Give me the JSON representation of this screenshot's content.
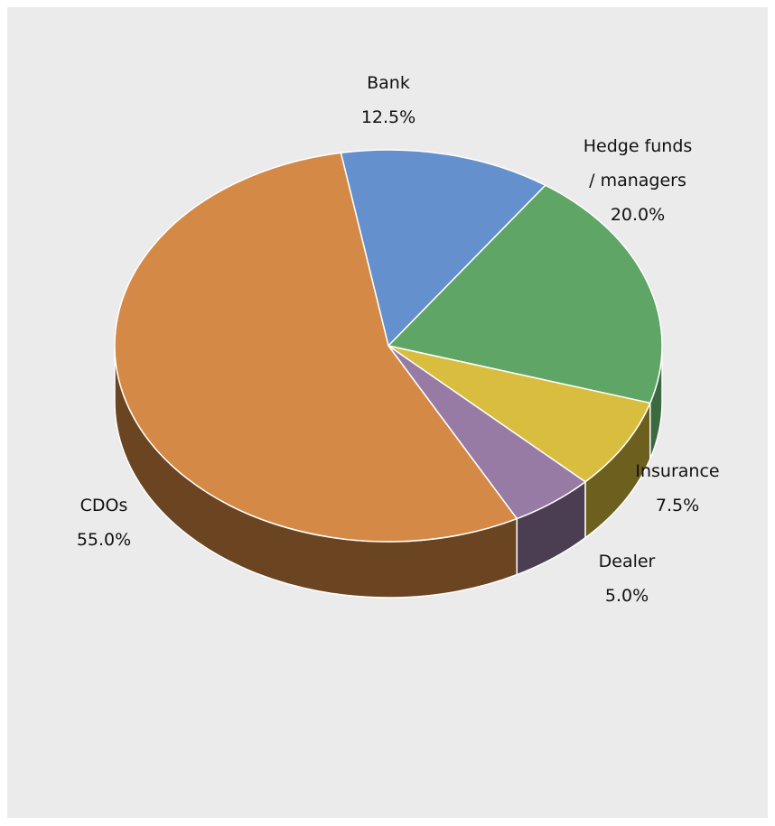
{
  "chart_data": {
    "type": "pie",
    "style": "3d-perspective",
    "title": "",
    "slices": [
      {
        "label": "Bank",
        "label_lines": [
          "Bank"
        ],
        "value": 12.5,
        "value_label": "12.5%",
        "color": "#6490cd",
        "side_color": "#3a5680"
      },
      {
        "label": "Hedge funds / managers",
        "label_lines": [
          "Hedge funds",
          "/ managers"
        ],
        "value": 20.0,
        "value_label": "20.0%",
        "color": "#5fa566",
        "side_color": "#3b6a40"
      },
      {
        "label": "Insurance",
        "label_lines": [
          "Insurance"
        ],
        "value": 7.5,
        "value_label": "7.5%",
        "color": "#d8bd3e",
        "side_color": "#6d5f1e"
      },
      {
        "label": "Dealer",
        "label_lines": [
          "Dealer"
        ],
        "value": 5.0,
        "value_label": "5.0%",
        "color": "#977ba4",
        "side_color": "#4c3e52"
      },
      {
        "label": "CDOs",
        "label_lines": [
          "CDOs"
        ],
        "value": 55.0,
        "value_label": "55.0%",
        "color": "#d48a46",
        "side_color": "#6b4522"
      }
    ],
    "background_color": "#ebebeb",
    "legend": "none"
  }
}
